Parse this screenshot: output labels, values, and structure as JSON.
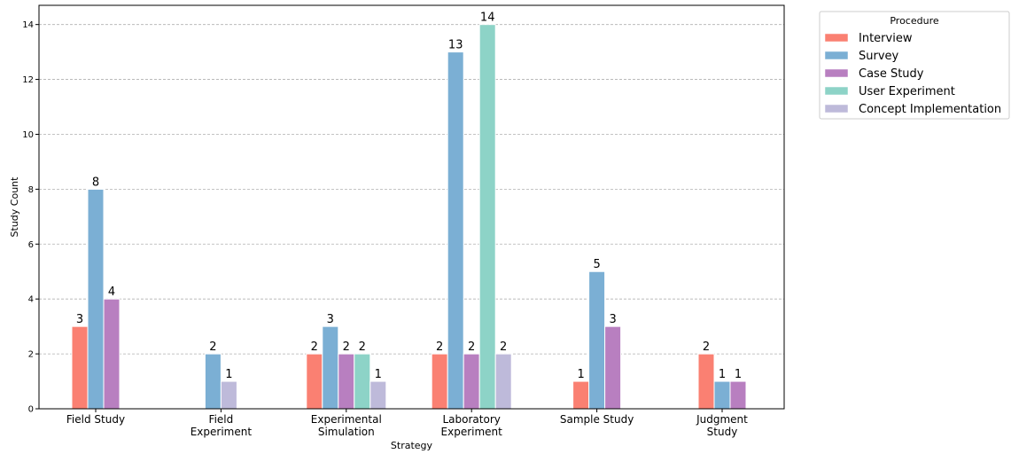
{
  "chart_data": {
    "type": "bar",
    "xlabel": "Strategy",
    "ylabel": "Study Count",
    "ylim": [
      0,
      14.7
    ],
    "yticks": [
      0,
      2,
      4,
      6,
      8,
      10,
      12,
      14
    ],
    "grid": "y-dashed",
    "legend_position": "outside-top-right",
    "legend_title": "Procedure",
    "categories": [
      [
        "Field Study"
      ],
      [
        "Field",
        "Experiment"
      ],
      [
        "Experimental",
        "Simulation"
      ],
      [
        "Laboratory",
        "Experiment"
      ],
      [
        "Sample Study"
      ],
      [
        "Judgment",
        "Study"
      ]
    ],
    "series": [
      {
        "name": "Interview",
        "color": "#fa8072",
        "values": [
          3,
          0,
          2,
          2,
          1,
          2
        ]
      },
      {
        "name": "Survey",
        "color": "#7bafd4",
        "values": [
          8,
          2,
          3,
          13,
          5,
          1
        ]
      },
      {
        "name": "Case Study",
        "color": "#b87fc0",
        "values": [
          4,
          0,
          2,
          2,
          3,
          1
        ]
      },
      {
        "name": "User Experiment",
        "color": "#8dd3c7",
        "values": [
          0,
          0,
          2,
          14,
          0,
          0
        ]
      },
      {
        "name": "Concept Implementation",
        "color": "#bebada",
        "values": [
          0,
          1,
          1,
          2,
          0,
          0
        ]
      }
    ],
    "bar_order": [
      [
        0,
        1,
        2
      ],
      [
        1,
        4
      ],
      [
        0,
        1,
        2,
        3,
        4
      ],
      [
        0,
        1,
        2,
        3,
        4
      ],
      [
        0,
        1,
        2
      ],
      [
        0,
        1,
        2
      ]
    ]
  }
}
